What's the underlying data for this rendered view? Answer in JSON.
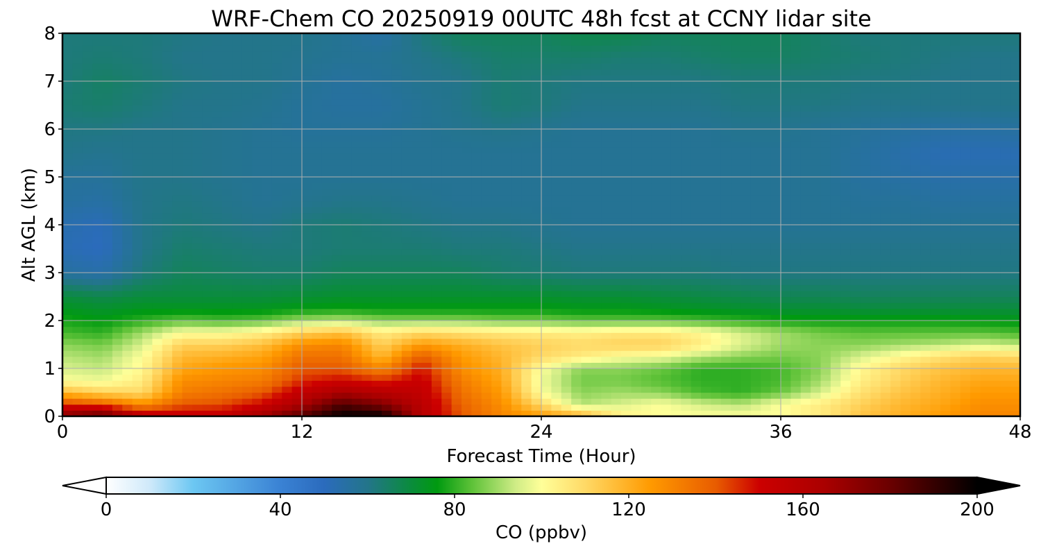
{
  "chart_data": {
    "type": "heatmap",
    "title": "WRF-Chem CO  20250919 00UTC 48h fcst at CCNY lidar site",
    "xlabel": "Forecast Time (Hour)",
    "ylabel": "Alt AGL (km)",
    "xlim": [
      0,
      48
    ],
    "ylim": [
      0,
      8
    ],
    "x_ticks": [
      "0",
      "12",
      "24",
      "36",
      "48"
    ],
    "y_ticks": [
      "0",
      "1",
      "2",
      "3",
      "4",
      "5",
      "6",
      "7",
      "8"
    ],
    "grid": true,
    "colorbar": {
      "label": "CO  (ppbv)",
      "range": [
        0,
        200
      ],
      "ticks": [
        "0",
        "40",
        "80",
        "120",
        "160",
        "200"
      ],
      "extend": "both",
      "stops": [
        [
          0,
          "#ffffff"
        ],
        [
          10,
          "#cfe9fa"
        ],
        [
          20,
          "#6cc7f2"
        ],
        [
          40,
          "#3a82d4"
        ],
        [
          50,
          "#2b6bbd"
        ],
        [
          60,
          "#23758a"
        ],
        [
          70,
          "#0a8c3c"
        ],
        [
          76,
          "#009a10"
        ],
        [
          84,
          "#5ec238"
        ],
        [
          94,
          "#cfec86"
        ],
        [
          100,
          "#ffff99"
        ],
        [
          110,
          "#ffd966"
        ],
        [
          125,
          "#ff9a00"
        ],
        [
          140,
          "#e85c00"
        ],
        [
          150,
          "#cc0000"
        ],
        [
          165,
          "#aa0000"
        ],
        [
          180,
          "#6a0000"
        ],
        [
          200,
          "#000000"
        ]
      ]
    },
    "z_units": "ppbv",
    "time_hours": [
      0,
      2,
      4,
      6,
      8,
      10,
      12,
      14,
      16,
      18,
      20,
      22,
      24,
      26,
      28,
      30,
      32,
      34,
      36,
      38,
      40,
      42,
      44,
      46,
      48
    ],
    "altitude_km": [
      0,
      0.25,
      0.5,
      0.75,
      1,
      1.25,
      1.5,
      1.75,
      2,
      2.25,
      2.5,
      3,
      3.5,
      4,
      4.5,
      5,
      5.5,
      6,
      6.5,
      7,
      7.5,
      8
    ],
    "values": [
      [
        175,
        185,
        160,
        155,
        155,
        168,
        185,
        200,
        200,
        160,
        140,
        130,
        125,
        120,
        105,
        100,
        100,
        100,
        100,
        105,
        115,
        120,
        125,
        130,
        130
      ],
      [
        145,
        140,
        128,
        140,
        142,
        150,
        165,
        185,
        175,
        158,
        138,
        128,
        110,
        92,
        95,
        100,
        95,
        92,
        100,
        105,
        112,
        118,
        122,
        128,
        128
      ],
      [
        118,
        112,
        110,
        132,
        135,
        140,
        155,
        165,
        160,
        155,
        135,
        125,
        100,
        88,
        90,
        88,
        82,
        80,
        85,
        95,
        108,
        115,
        120,
        125,
        125
      ],
      [
        100,
        98,
        105,
        128,
        130,
        132,
        145,
        150,
        145,
        152,
        132,
        122,
        98,
        86,
        86,
        83,
        80,
        80,
        82,
        90,
        104,
        112,
        118,
        122,
        122
      ],
      [
        95,
        93,
        102,
        122,
        126,
        128,
        140,
        140,
        130,
        148,
        128,
        120,
        100,
        88,
        88,
        85,
        80,
        80,
        82,
        88,
        102,
        110,
        115,
        118,
        118
      ],
      [
        92,
        90,
        100,
        118,
        120,
        123,
        135,
        135,
        118,
        140,
        125,
        118,
        110,
        105,
        100,
        98,
        92,
        88,
        86,
        88,
        95,
        102,
        108,
        112,
        110
      ],
      [
        88,
        86,
        95,
        112,
        112,
        116,
        128,
        130,
        112,
        125,
        120,
        115,
        112,
        110,
        112,
        112,
        105,
        96,
        90,
        88,
        88,
        90,
        92,
        95,
        92
      ],
      [
        82,
        80,
        90,
        100,
        100,
        104,
        112,
        116,
        105,
        110,
        108,
        106,
        105,
        104,
        106,
        106,
        102,
        95,
        90,
        86,
        84,
        84,
        84,
        84,
        82
      ],
      [
        78,
        76,
        80,
        84,
        82,
        84,
        90,
        92,
        88,
        88,
        88,
        86,
        86,
        84,
        84,
        84,
        82,
        80,
        78,
        77,
        77,
        77,
        77,
        76,
        75
      ],
      [
        74,
        72,
        74,
        74,
        74,
        74,
        76,
        77,
        76,
        76,
        76,
        76,
        76,
        75,
        75,
        74,
        73,
        72,
        71,
        71,
        70,
        70,
        70,
        70,
        70
      ],
      [
        70,
        68,
        70,
        70,
        70,
        70,
        71,
        72,
        72,
        72,
        72,
        72,
        72,
        71,
        71,
        70,
        69,
        68,
        67,
        67,
        66,
        66,
        66,
        66,
        66
      ],
      [
        56,
        54,
        62,
        66,
        65,
        64,
        64,
        66,
        66,
        66,
        66,
        64,
        63,
        62,
        62,
        62,
        62,
        61,
        61,
        61,
        61,
        61,
        61,
        61,
        61
      ],
      [
        52,
        50,
        60,
        64,
        63,
        62,
        62,
        63,
        63,
        63,
        62,
        62,
        61,
        60,
        60,
        60,
        60,
        60,
        60,
        60,
        60,
        60,
        60,
        60,
        60
      ],
      [
        53,
        51,
        60,
        62,
        61,
        60,
        62,
        63,
        62,
        61,
        60,
        60,
        59,
        58,
        58,
        58,
        58,
        58,
        58,
        58,
        58,
        58,
        58,
        58,
        58
      ],
      [
        56,
        55,
        60,
        61,
        60,
        58,
        59,
        60,
        60,
        59,
        58,
        58,
        58,
        58,
        58,
        58,
        58,
        58,
        58,
        58,
        57,
        57,
        56,
        56,
        56
      ],
      [
        57,
        57,
        60,
        60,
        59,
        58,
        58,
        58,
        58,
        58,
        58,
        58,
        58,
        58,
        58,
        58,
        58,
        58,
        58,
        58,
        56,
        55,
        54,
        54,
        54
      ],
      [
        60,
        59,
        60,
        60,
        59,
        58,
        58,
        58,
        58,
        58,
        58,
        58,
        58,
        58,
        58,
        58,
        58,
        58,
        58,
        58,
        56,
        54,
        52,
        52,
        52
      ],
      [
        61,
        61,
        60,
        60,
        59,
        58,
        57,
        57,
        57,
        58,
        59,
        60,
        59,
        58,
        58,
        58,
        58,
        59,
        59,
        58,
        57,
        56,
        55,
        55,
        56
      ],
      [
        63,
        64,
        62,
        60,
        60,
        59,
        57,
        56,
        56,
        58,
        60,
        63,
        62,
        60,
        60,
        60,
        60,
        61,
        61,
        61,
        60,
        60,
        60,
        60,
        60
      ],
      [
        62,
        65,
        63,
        61,
        60,
        60,
        58,
        56,
        57,
        59,
        60,
        63,
        62,
        61,
        61,
        61,
        61,
        62,
        62,
        62,
        61,
        61,
        60,
        60,
        60
      ],
      [
        62,
        63,
        62,
        60,
        60,
        60,
        59,
        58,
        58,
        60,
        62,
        64,
        64,
        64,
        63,
        63,
        64,
        65,
        65,
        64,
        63,
        62,
        61,
        60,
        60
      ],
      [
        62,
        62,
        62,
        61,
        60,
        60,
        60,
        58,
        55,
        62,
        66,
        66,
        66,
        68,
        68,
        66,
        66,
        66,
        66,
        64,
        62,
        62,
        62,
        62,
        62
      ]
    ]
  }
}
